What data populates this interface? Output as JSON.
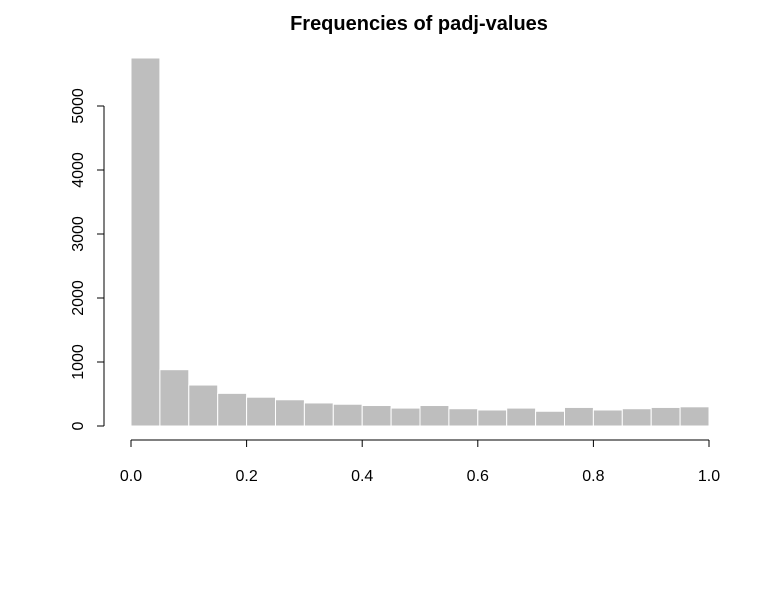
{
  "chart_data": {
    "type": "bar",
    "title": "Frequencies of padj-values",
    "xlabel": "",
    "ylabel": "",
    "xlim": [
      0.0,
      1.0
    ],
    "ylim": [
      0,
      5750
    ],
    "grid": false,
    "bin_edges": [
      0.0,
      0.05,
      0.1,
      0.15,
      0.2,
      0.25,
      0.3,
      0.35,
      0.4,
      0.45,
      0.5,
      0.55,
      0.6,
      0.65,
      0.7,
      0.75,
      0.8,
      0.85,
      0.9,
      0.95,
      1.0
    ],
    "values": [
      5750,
      880,
      640,
      510,
      450,
      410,
      360,
      340,
      320,
      280,
      320,
      270,
      250,
      280,
      230,
      290,
      250,
      270,
      290,
      300
    ],
    "x_ticks": [
      0.0,
      0.2,
      0.4,
      0.6,
      0.8,
      1.0
    ],
    "x_tick_labels": [
      "0.0",
      "0.2",
      "0.4",
      "0.6",
      "0.8",
      "1.0"
    ],
    "y_ticks": [
      0,
      1000,
      2000,
      3000,
      4000,
      5000
    ],
    "y_tick_labels": [
      "0",
      "1000",
      "2000",
      "3000",
      "4000",
      "5000"
    ],
    "colors": {
      "bar_fill": "#bebebe",
      "bar_border": "#ffffff"
    }
  }
}
